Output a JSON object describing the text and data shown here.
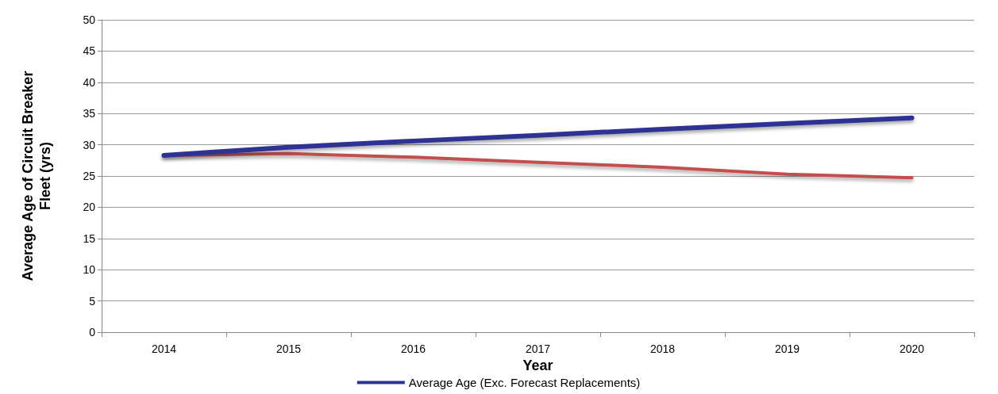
{
  "chart_data": {
    "type": "line",
    "xlabel": "Year",
    "ylabel": "Average Age of Circuit Breaker\nFleet (yrs)",
    "categories": [
      "2014",
      "2015",
      "2016",
      "2017",
      "2018",
      "2019",
      "2020"
    ],
    "series": [
      {
        "name": "Average Age (Exc. Forecast Replacements)",
        "color": "#2e3192",
        "values": [
          28.3,
          29.6,
          30.6,
          31.5,
          32.5,
          33.4,
          34.3
        ]
      },
      {
        "color": "#c0504d",
        "values": [
          28.3,
          28.6,
          28.0,
          27.2,
          26.4,
          25.3,
          24.7
        ]
      }
    ],
    "ylim": [
      0,
      50
    ],
    "yticks": [
      0,
      5,
      10,
      15,
      20,
      25,
      30,
      35,
      40,
      45,
      50
    ],
    "grid": "y",
    "legend": "bottom",
    "marker": "none",
    "line_style": "solid"
  }
}
